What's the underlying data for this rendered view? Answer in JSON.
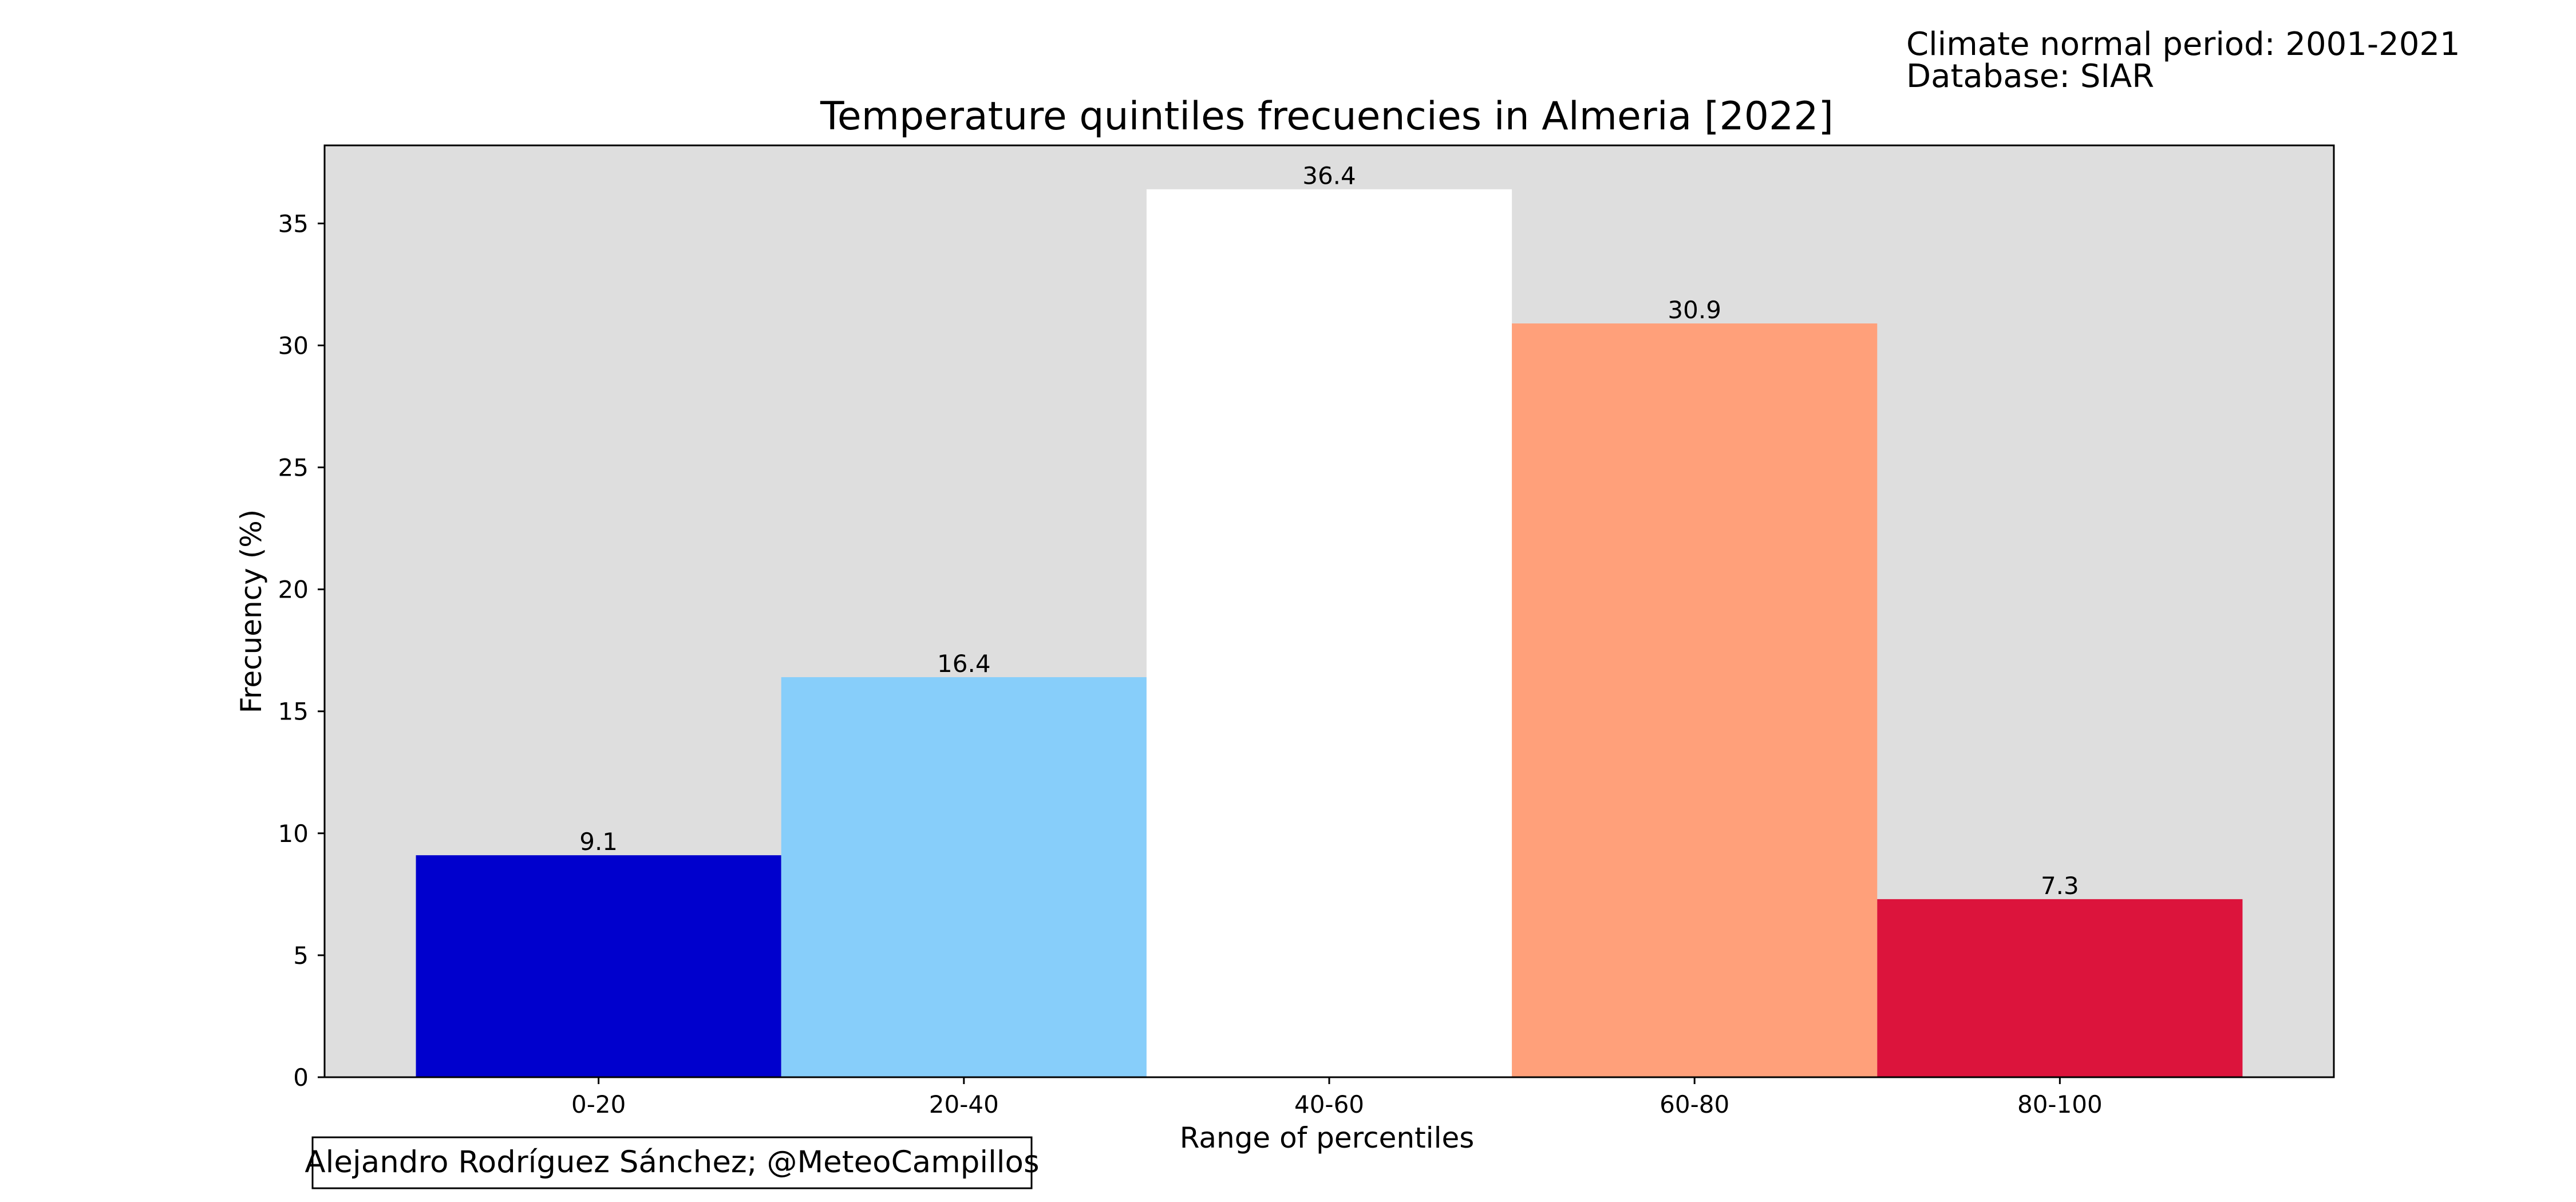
{
  "notes": {
    "period": "Climate normal period: 2001-2021",
    "database": "Database: SIAR"
  },
  "credit": "Alejandro Rodríguez Sánchez; @MeteoCampillos",
  "chart_data": {
    "type": "bar",
    "title": "Temperature quintiles frecuencies in Almeria [2022]",
    "xlabel": "Range of percentiles",
    "ylabel": "Frecuency (%)",
    "categories": [
      "0-20",
      "20-40",
      "40-60",
      "60-80",
      "80-100"
    ],
    "values": [
      9.1,
      16.4,
      36.4,
      30.9,
      7.3
    ],
    "value_labels": [
      "9.1",
      "16.4",
      "36.4",
      "30.9",
      "7.3"
    ],
    "bar_colors": [
      "#0000cd",
      "#87cefa",
      "#ffffff",
      "#ffa07a",
      "#dc143c"
    ],
    "plot_background": "#dedede",
    "ylim": [
      0,
      38.2
    ],
    "yticks": [
      0,
      5,
      10,
      15,
      20,
      25,
      30,
      35
    ],
    "grid": false,
    "legend": "none"
  }
}
